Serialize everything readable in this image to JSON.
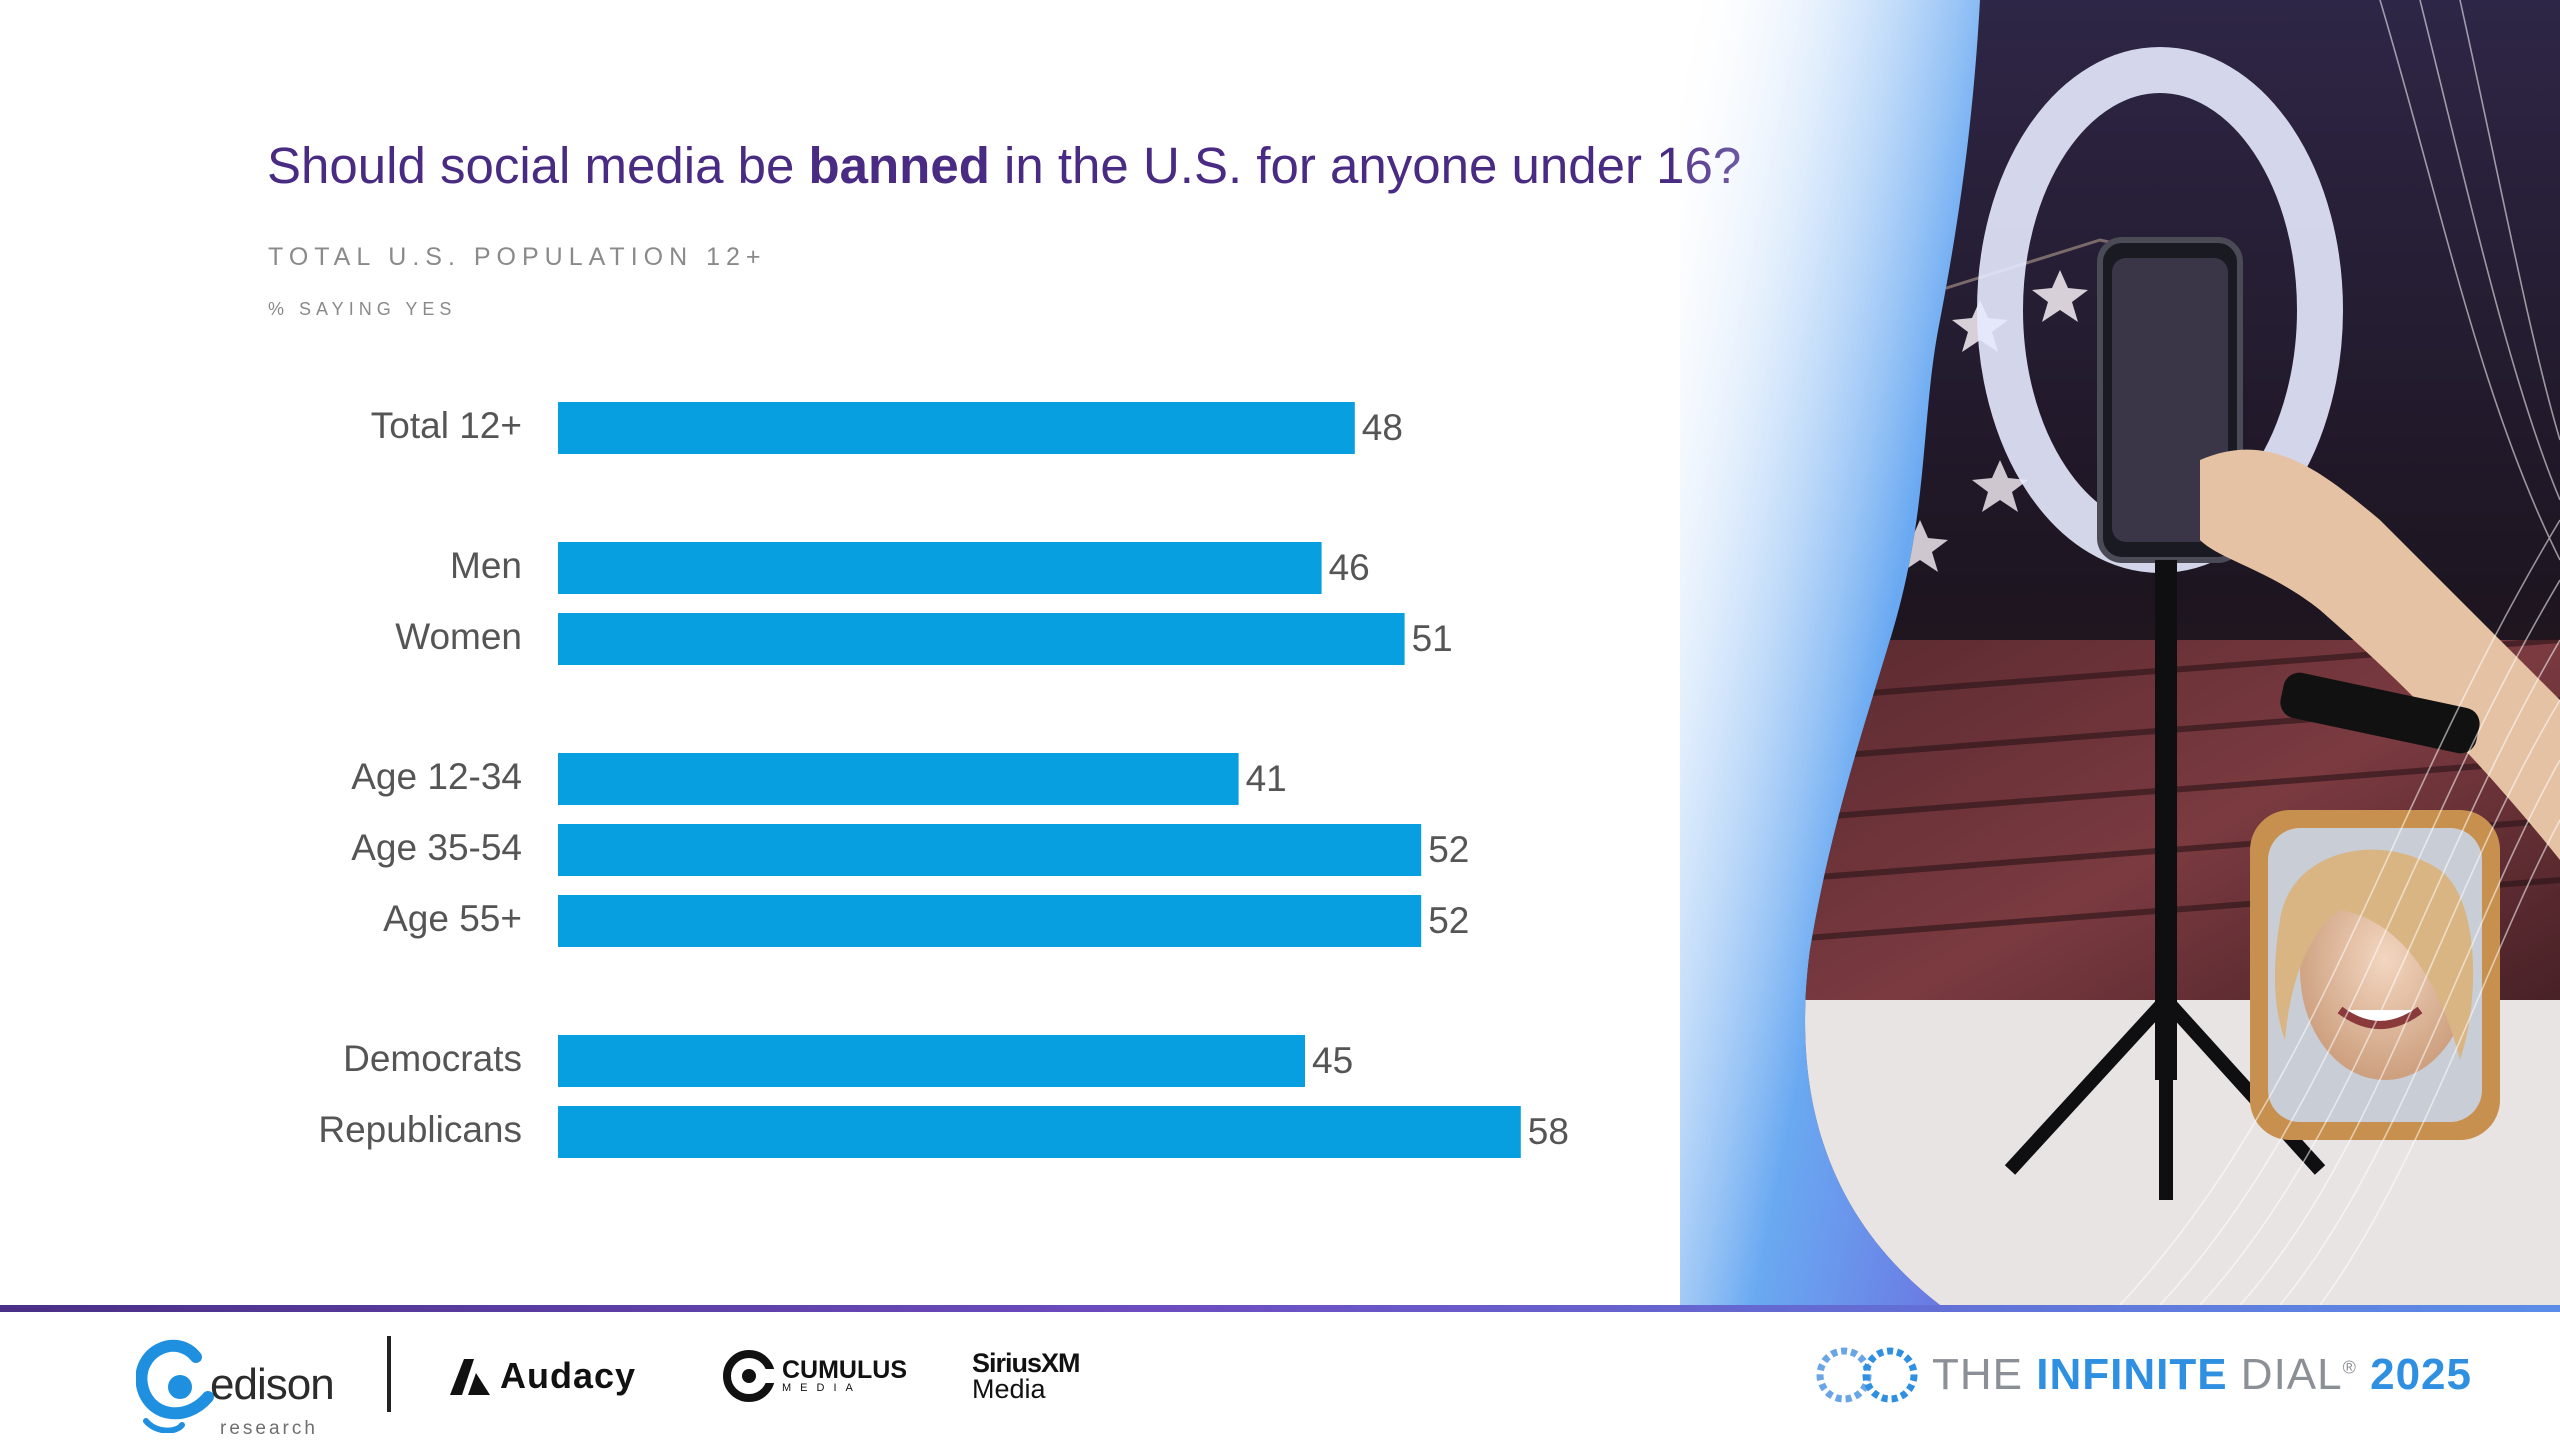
{
  "title": {
    "prefix": "Should social media be ",
    "emphasis": "banned",
    "suffix": " in the U.S. for anyone under 16?"
  },
  "subtitle": "TOTAL U.S. POPULATION 12+",
  "measure_label": "% SAYING YES",
  "chart_data": {
    "type": "bar",
    "orientation": "horizontal",
    "title": "Should social media be banned in the U.S. for anyone under 16?",
    "subtitle": "TOTAL U.S. POPULATION 12+",
    "ylabel": "% SAYING YES",
    "categories": [
      "Total 12+",
      "Men",
      "Women",
      "Age 12-34",
      "Age 35-54",
      "Age 55+",
      "Democrats",
      "Republicans"
    ],
    "groups": [
      [
        0
      ],
      [
        1,
        2
      ],
      [
        3,
        4,
        5
      ],
      [
        6,
        7
      ]
    ],
    "values": [
      48,
      46,
      51,
      41,
      52,
      52,
      45,
      58
    ],
    "xlim": [
      0,
      100
    ],
    "grid": false,
    "bar_color": "#089fe0"
  },
  "footer": {
    "logos": {
      "edison": "edison",
      "edison_sub": "research",
      "audacy": "Audacy",
      "cumulus": "CUMULUS",
      "cumulus_sub": "MEDIA",
      "sirius_line1": "SiriusXM",
      "sirius_line2": "Media"
    },
    "brand": {
      "prefix": "THE ",
      "emphasis": "INFINITE",
      "suffix": " DIAL",
      "trademark": "®",
      "year": "2025"
    }
  },
  "colors": {
    "title": "#4a2b84",
    "bar": "#089fe0",
    "accent_blue": "#2f8fe0",
    "purple": "#6c4cc0"
  }
}
